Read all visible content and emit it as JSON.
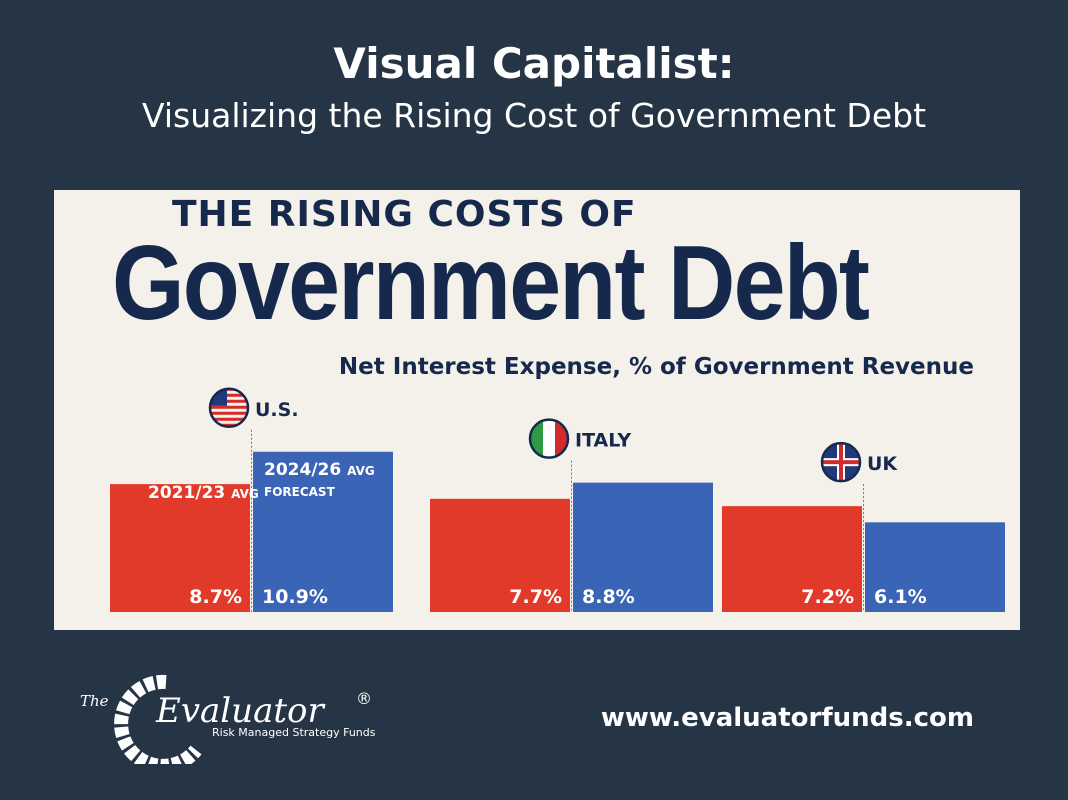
{
  "header": {
    "title": "Visual Capitalist:",
    "subtitle": "Visualizing the Rising Cost of Government Debt"
  },
  "infographic": {
    "kicker": "THE RISING COSTS OF",
    "headline": "Government Debt",
    "subtitle": "Net Interest Expense, % of Government Revenue"
  },
  "chart_data": {
    "type": "bar",
    "title": "Government Debt",
    "subtitle": "Net Interest Expense, % of Government Revenue",
    "categories": [
      "U.S.",
      "ITALY",
      "UK"
    ],
    "series": [
      {
        "name": "2021/23 AVG",
        "values": [
          8.7,
          7.7,
          7.2
        ],
        "color": "#e23a2a"
      },
      {
        "name": "2024/26 AVG FORECAST",
        "values": [
          10.9,
          8.8,
          6.1
        ],
        "color": "#3a64b5"
      }
    ],
    "series_labels": {
      "series1_main": "2021/23",
      "series1_suffix": "AVG",
      "series2_main": "2024/26",
      "series2_suffix": "AVG",
      "series2_note": "FORECAST"
    },
    "value_labels": [
      [
        "8.7",
        "7.7",
        "7.2"
      ],
      [
        "10.9",
        "8.8",
        "6.1"
      ]
    ],
    "unit": "%",
    "ylim": [
      0,
      11
    ]
  },
  "footer": {
    "logo_prefix": "The",
    "logo_main": "Evaluator",
    "logo_mark": "®",
    "logo_tagline": "Risk Managed Strategy Funds",
    "url": "www.evaluatorfunds.com"
  },
  "icons": [
    "us-flag-icon",
    "italy-flag-icon",
    "uk-flag-icon",
    "evaluator-logo-icon"
  ],
  "colors": {
    "background": "#263545",
    "navy": "#16294d",
    "red": "#e23a2a",
    "blue": "#3a64b5",
    "card": "#f4f1ea"
  }
}
